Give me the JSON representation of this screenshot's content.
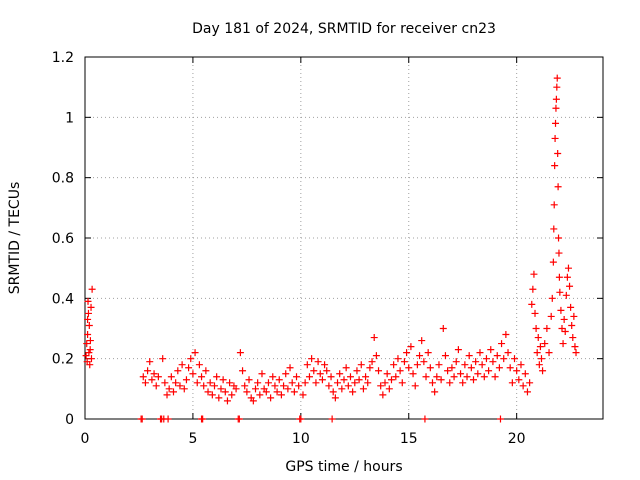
{
  "chart_data": {
    "type": "scatter",
    "title": "Day 181 of 2024, SRMTID for receiver cn23",
    "xlabel": "GPS time / hours",
    "ylabel": "SRMTID / TECUs",
    "xlim": [
      0,
      24
    ],
    "ylim": [
      0,
      1.2
    ],
    "xticks": [
      0,
      5,
      10,
      15,
      20
    ],
    "xtick_labels": [
      "0",
      "5",
      "10",
      "15",
      "20"
    ],
    "yticks": [
      0,
      0.2,
      0.4,
      0.6,
      0.8,
      1.0,
      1.2
    ],
    "ytick_labels": [
      "0",
      "0.2",
      "0.4",
      "0.6",
      "0.8",
      "1",
      "1.2"
    ],
    "grid": true,
    "marker": "+",
    "color": "#ff0000",
    "series": [
      {
        "name": "cn23",
        "points": [
          [
            0.05,
            0.21
          ],
          [
            0.08,
            0.25
          ],
          [
            0.1,
            0.19
          ],
          [
            0.12,
            0.28
          ],
          [
            0.14,
            0.39
          ],
          [
            0.16,
            0.35
          ],
          [
            0.18,
            0.22
          ],
          [
            0.2,
            0.31
          ],
          [
            0.22,
            0.18
          ],
          [
            0.25,
            0.26
          ],
          [
            0.28,
            0.37
          ],
          [
            0.3,
            0.2
          ],
          [
            0.33,
            0.43
          ],
          [
            0.12,
            0.33
          ],
          [
            0.24,
            0.23
          ],
          [
            2.6,
            0.0
          ],
          [
            3.5,
            0.0
          ],
          [
            3.65,
            0.0
          ],
          [
            3.85,
            0.0
          ],
          [
            5.4,
            0.0
          ],
          [
            7.1,
            0.0
          ],
          [
            9.95,
            0.0
          ],
          [
            11.45,
            0.0
          ],
          [
            15.75,
            0.0
          ],
          [
            19.25,
            0.0
          ],
          [
            2.65,
            0.0
          ],
          [
            3.55,
            0.0
          ],
          [
            5.45,
            0.0
          ],
          [
            7.15,
            0.0
          ],
          [
            10.0,
            0.0
          ],
          [
            2.7,
            0.14
          ],
          [
            2.8,
            0.12
          ],
          [
            2.9,
            0.16
          ],
          [
            3.0,
            0.19
          ],
          [
            3.1,
            0.13
          ],
          [
            3.2,
            0.15
          ],
          [
            3.3,
            0.11
          ],
          [
            3.4,
            0.14
          ],
          [
            3.6,
            0.2
          ],
          [
            3.7,
            0.12
          ],
          [
            3.8,
            0.08
          ],
          [
            3.9,
            0.1
          ],
          [
            4.0,
            0.14
          ],
          [
            4.1,
            0.09
          ],
          [
            4.2,
            0.12
          ],
          [
            4.3,
            0.16
          ],
          [
            4.4,
            0.11
          ],
          [
            4.5,
            0.18
          ],
          [
            4.6,
            0.1
          ],
          [
            4.7,
            0.13
          ],
          [
            4.8,
            0.17
          ],
          [
            4.9,
            0.2
          ],
          [
            5.0,
            0.15
          ],
          [
            5.1,
            0.22
          ],
          [
            5.2,
            0.12
          ],
          [
            5.3,
            0.18
          ],
          [
            5.4,
            0.14
          ],
          [
            5.5,
            0.11
          ],
          [
            5.6,
            0.16
          ],
          [
            5.7,
            0.09
          ],
          [
            5.8,
            0.12
          ],
          [
            5.9,
            0.08
          ],
          [
            6.0,
            0.11
          ],
          [
            6.1,
            0.14
          ],
          [
            6.2,
            0.07
          ],
          [
            6.3,
            0.1
          ],
          [
            6.4,
            0.13
          ],
          [
            6.5,
            0.09
          ],
          [
            6.6,
            0.06
          ],
          [
            6.7,
            0.12
          ],
          [
            6.8,
            0.08
          ],
          [
            6.9,
            0.11
          ],
          [
            7.0,
            0.1
          ],
          [
            7.2,
            0.22
          ],
          [
            7.3,
            0.16
          ],
          [
            7.4,
            0.11
          ],
          [
            7.5,
            0.09
          ],
          [
            7.6,
            0.13
          ],
          [
            7.7,
            0.07
          ],
          [
            7.8,
            0.06
          ],
          [
            7.9,
            0.1
          ],
          [
            8.0,
            0.12
          ],
          [
            8.1,
            0.08
          ],
          [
            8.2,
            0.15
          ],
          [
            8.3,
            0.1
          ],
          [
            8.4,
            0.09
          ],
          [
            8.5,
            0.12
          ],
          [
            8.6,
            0.07
          ],
          [
            8.7,
            0.14
          ],
          [
            8.8,
            0.11
          ],
          [
            8.9,
            0.09
          ],
          [
            9.0,
            0.13
          ],
          [
            9.1,
            0.08
          ],
          [
            9.2,
            0.11
          ],
          [
            9.3,
            0.15
          ],
          [
            9.4,
            0.1
          ],
          [
            9.5,
            0.17
          ],
          [
            9.6,
            0.12
          ],
          [
            9.7,
            0.09
          ],
          [
            9.8,
            0.14
          ],
          [
            9.9,
            0.11
          ],
          [
            10.1,
            0.08
          ],
          [
            10.2,
            0.12
          ],
          [
            10.3,
            0.18
          ],
          [
            10.4,
            0.14
          ],
          [
            10.5,
            0.2
          ],
          [
            10.6,
            0.16
          ],
          [
            10.7,
            0.12
          ],
          [
            10.8,
            0.19
          ],
          [
            10.9,
            0.15
          ],
          [
            11.0,
            0.13
          ],
          [
            11.1,
            0.18
          ],
          [
            11.2,
            0.16
          ],
          [
            11.3,
            0.11
          ],
          [
            11.4,
            0.14
          ],
          [
            11.5,
            0.09
          ],
          [
            11.6,
            0.07
          ],
          [
            11.7,
            0.12
          ],
          [
            11.8,
            0.15
          ],
          [
            11.9,
            0.1
          ],
          [
            12.0,
            0.13
          ],
          [
            12.1,
            0.17
          ],
          [
            12.2,
            0.11
          ],
          [
            12.3,
            0.14
          ],
          [
            12.4,
            0.09
          ],
          [
            12.5,
            0.12
          ],
          [
            12.6,
            0.16
          ],
          [
            12.7,
            0.13
          ],
          [
            12.8,
            0.18
          ],
          [
            12.9,
            0.1
          ],
          [
            13.0,
            0.14
          ],
          [
            13.1,
            0.12
          ],
          [
            13.2,
            0.17
          ],
          [
            13.3,
            0.19
          ],
          [
            13.4,
            0.27
          ],
          [
            13.5,
            0.21
          ],
          [
            13.6,
            0.16
          ],
          [
            13.7,
            0.11
          ],
          [
            13.8,
            0.08
          ],
          [
            13.9,
            0.12
          ],
          [
            14.0,
            0.15
          ],
          [
            14.1,
            0.1
          ],
          [
            14.2,
            0.13
          ],
          [
            14.3,
            0.18
          ],
          [
            14.4,
            0.14
          ],
          [
            14.5,
            0.2
          ],
          [
            14.6,
            0.16
          ],
          [
            14.7,
            0.12
          ],
          [
            14.8,
            0.19
          ],
          [
            14.9,
            0.22
          ],
          [
            15.0,
            0.17
          ],
          [
            15.1,
            0.24
          ],
          [
            15.2,
            0.15
          ],
          [
            15.3,
            0.11
          ],
          [
            15.4,
            0.18
          ],
          [
            15.5,
            0.21
          ],
          [
            15.6,
            0.26
          ],
          [
            15.7,
            0.19
          ],
          [
            15.8,
            0.14
          ],
          [
            15.9,
            0.22
          ],
          [
            16.0,
            0.17
          ],
          [
            16.1,
            0.12
          ],
          [
            16.2,
            0.09
          ],
          [
            16.3,
            0.14
          ],
          [
            16.4,
            0.18
          ],
          [
            16.5,
            0.13
          ],
          [
            16.6,
            0.3
          ],
          [
            16.7,
            0.21
          ],
          [
            16.8,
            0.16
          ],
          [
            16.9,
            0.12
          ],
          [
            17.0,
            0.17
          ],
          [
            17.1,
            0.14
          ],
          [
            17.2,
            0.19
          ],
          [
            17.3,
            0.23
          ],
          [
            17.4,
            0.15
          ],
          [
            17.5,
            0.12
          ],
          [
            17.6,
            0.18
          ],
          [
            17.7,
            0.14
          ],
          [
            17.8,
            0.21
          ],
          [
            17.9,
            0.17
          ],
          [
            18.0,
            0.13
          ],
          [
            18.1,
            0.19
          ],
          [
            18.2,
            0.15
          ],
          [
            18.3,
            0.22
          ],
          [
            18.4,
            0.18
          ],
          [
            18.5,
            0.14
          ],
          [
            18.6,
            0.2
          ],
          [
            18.7,
            0.16
          ],
          [
            18.8,
            0.23
          ],
          [
            18.9,
            0.19
          ],
          [
            19.0,
            0.14
          ],
          [
            19.1,
            0.21
          ],
          [
            19.2,
            0.17
          ],
          [
            19.3,
            0.25
          ],
          [
            19.4,
            0.2
          ],
          [
            19.5,
            0.28
          ],
          [
            19.6,
            0.22
          ],
          [
            19.7,
            0.17
          ],
          [
            19.8,
            0.12
          ],
          [
            19.9,
            0.2
          ],
          [
            20.0,
            0.16
          ],
          [
            20.1,
            0.13
          ],
          [
            20.2,
            0.18
          ],
          [
            20.3,
            0.11
          ],
          [
            20.4,
            0.15
          ],
          [
            20.5,
            0.09
          ],
          [
            20.6,
            0.12
          ],
          [
            20.7,
            0.38
          ],
          [
            20.75,
            0.43
          ],
          [
            20.8,
            0.48
          ],
          [
            20.85,
            0.35
          ],
          [
            20.9,
            0.3
          ],
          [
            20.95,
            0.22
          ],
          [
            21.0,
            0.27
          ],
          [
            21.05,
            0.18
          ],
          [
            21.1,
            0.24
          ],
          [
            21.15,
            0.2
          ],
          [
            21.2,
            0.16
          ],
          [
            21.3,
            0.25
          ],
          [
            21.4,
            0.3
          ],
          [
            21.5,
            0.22
          ],
          [
            21.6,
            0.34
          ],
          [
            21.65,
            0.4
          ],
          [
            21.7,
            0.52
          ],
          [
            21.72,
            0.63
          ],
          [
            21.74,
            0.71
          ],
          [
            21.76,
            0.84
          ],
          [
            21.78,
            0.93
          ],
          [
            21.8,
            0.98
          ],
          [
            21.82,
            1.03
          ],
          [
            21.84,
            1.06
          ],
          [
            21.86,
            1.1
          ],
          [
            21.88,
            1.13
          ],
          [
            21.9,
            0.88
          ],
          [
            21.92,
            0.77
          ],
          [
            21.94,
            0.6
          ],
          [
            21.96,
            0.55
          ],
          [
            21.98,
            0.47
          ],
          [
            22.0,
            0.42
          ],
          [
            22.05,
            0.36
          ],
          [
            22.1,
            0.3
          ],
          [
            22.15,
            0.25
          ],
          [
            22.2,
            0.33
          ],
          [
            22.25,
            0.29
          ],
          [
            22.3,
            0.41
          ],
          [
            22.35,
            0.47
          ],
          [
            22.4,
            0.5
          ],
          [
            22.45,
            0.44
          ],
          [
            22.5,
            0.37
          ],
          [
            22.55,
            0.31
          ],
          [
            22.6,
            0.27
          ],
          [
            22.65,
            0.34
          ],
          [
            22.7,
            0.24
          ],
          [
            22.75,
            0.22
          ]
        ]
      }
    ]
  }
}
